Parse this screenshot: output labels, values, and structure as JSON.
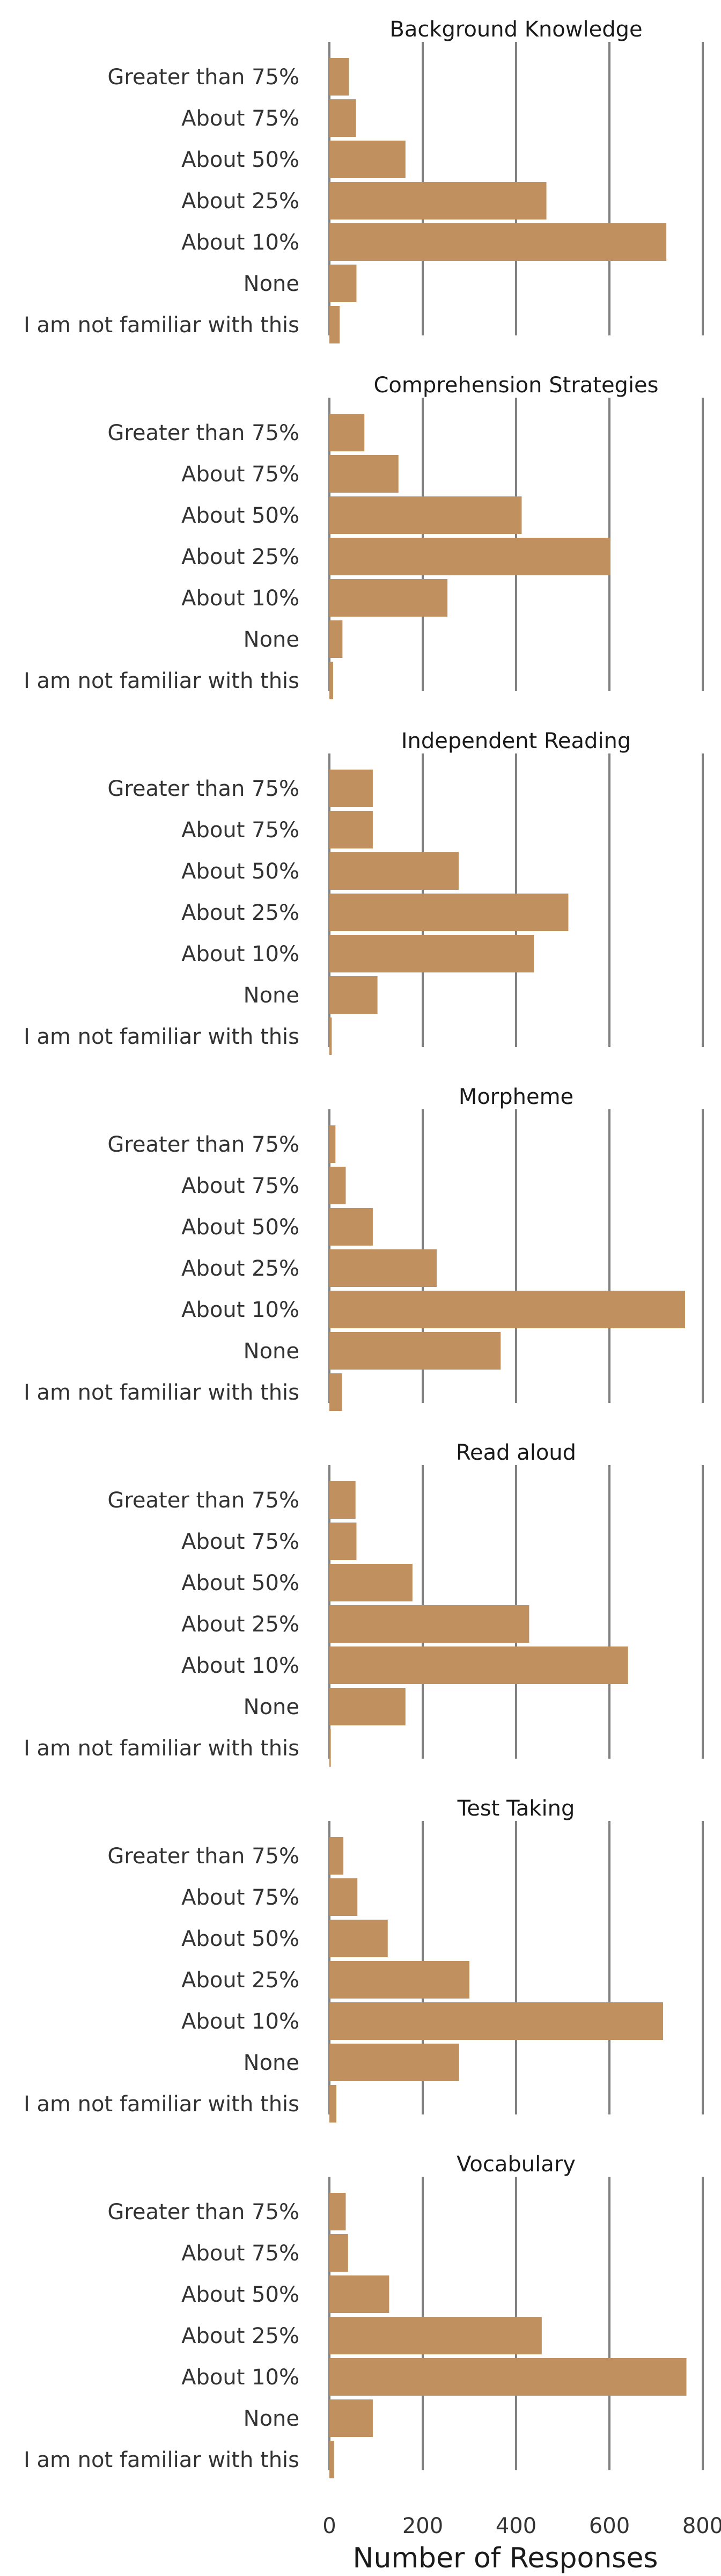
{
  "chart_data": {
    "type": "bar",
    "orientation": "horizontal",
    "layout": "small-multiples, shared x axis",
    "bar_color": "#c0905e",
    "grid_color": "#808080",
    "xlabel": "Number of Responses",
    "xlim": [
      0,
      800
    ],
    "xticks": [
      0,
      200,
      400,
      600,
      800
    ],
    "categories": [
      "Greater than 75%",
      "About 75%",
      "About 50%",
      "About 25%",
      "About 10%",
      "None",
      "I am not familiar with this"
    ],
    "panels": [
      {
        "title": "Background Knowledge",
        "values": [
          42,
          57,
          163,
          465,
          722,
          58,
          22
        ]
      },
      {
        "title": "Comprehension Strategies",
        "values": [
          75,
          148,
          412,
          602,
          253,
          28,
          8
        ]
      },
      {
        "title": "Independent Reading",
        "values": [
          93,
          93,
          277,
          512,
          438,
          103,
          5
        ]
      },
      {
        "title": "Morpheme",
        "values": [
          13,
          35,
          93,
          230,
          762,
          367,
          27
        ]
      },
      {
        "title": "Read aloud",
        "values": [
          56,
          58,
          178,
          428,
          640,
          163,
          3
        ]
      },
      {
        "title": "Test Taking",
        "values": [
          30,
          60,
          125,
          300,
          715,
          278,
          15
        ]
      },
      {
        "title": "Vocabulary",
        "values": [
          35,
          40,
          128,
          455,
          765,
          93,
          10
        ]
      }
    ]
  }
}
